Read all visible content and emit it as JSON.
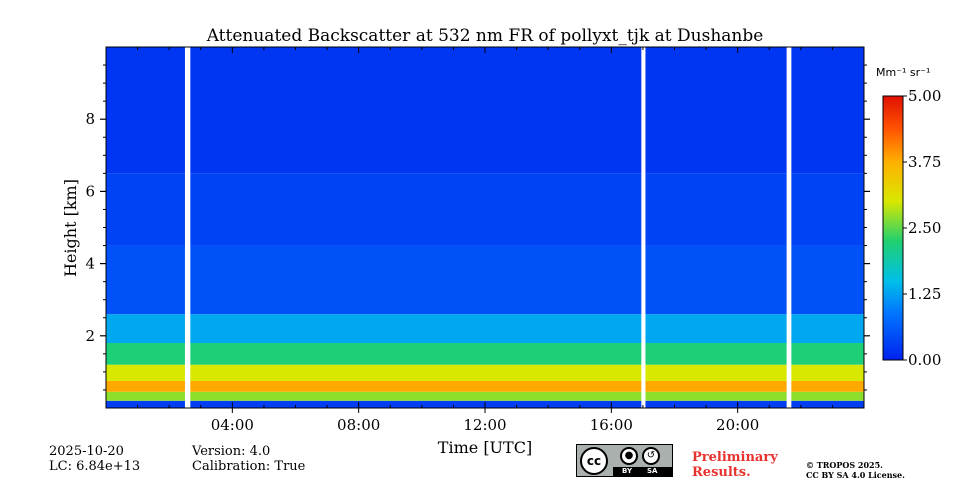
{
  "chart_data": {
    "type": "heatmap",
    "title": "Attenuated Backscatter at 532 nm FR of pollyxt_tjk at Dushanbe",
    "xlabel": "Time [UTC]",
    "ylabel": "Height [km]",
    "x_range_hours": [
      0,
      24
    ],
    "ylim": [
      0,
      10
    ],
    "x_ticks": [
      {
        "value": 4,
        "label": "04:00"
      },
      {
        "value": 8,
        "label": "08:00"
      },
      {
        "value": 12,
        "label": "12:00"
      },
      {
        "value": 16,
        "label": "16:00"
      },
      {
        "value": 20,
        "label": "20:00"
      }
    ],
    "y_ticks": [
      {
        "value": 2,
        "label": "2"
      },
      {
        "value": 4,
        "label": "4"
      },
      {
        "value": 6,
        "label": "6"
      },
      {
        "value": 8,
        "label": "8"
      }
    ],
    "colorbar": {
      "unit": "Mm⁻¹ sr⁻¹",
      "range": [
        0,
        5
      ],
      "ticks": [
        {
          "value": 0,
          "label": "0.00"
        },
        {
          "value": 1.25,
          "label": "1.25"
        },
        {
          "value": 2.5,
          "label": "2.50"
        },
        {
          "value": 3.75,
          "label": "3.75"
        },
        {
          "value": 5,
          "label": "5.00"
        }
      ],
      "colormap": "jet"
    },
    "data_gaps_hours": [
      [
        2.5,
        2.67
      ],
      [
        16.95,
        17.08
      ],
      [
        21.55,
        21.7
      ]
    ],
    "profile_layers": [
      {
        "height_km": [
          0.0,
          0.2
        ],
        "value": 0.3
      },
      {
        "height_km": [
          0.2,
          0.45
        ],
        "value": 2.7
      },
      {
        "height_km": [
          0.45,
          0.75
        ],
        "value": 3.8
      },
      {
        "height_km": [
          0.75,
          1.2
        ],
        "value": 3.0
      },
      {
        "height_km": [
          1.2,
          1.8
        ],
        "value": 2.2
      },
      {
        "height_km": [
          1.8,
          2.6
        ],
        "value": 1.3
      },
      {
        "height_km": [
          2.6,
          4.5
        ],
        "value": 0.5
      },
      {
        "height_km": [
          4.5,
          6.5
        ],
        "value": 0.35
      },
      {
        "height_km": [
          6.5,
          10.0
        ],
        "value": 0.2
      }
    ]
  },
  "footer": {
    "date": "2025-10-20",
    "lc": "LC: 6.84e+13",
    "version": "Version: 4.0",
    "calibration": "Calibration: True",
    "license_badge": {
      "cc": "cc",
      "by": "BY",
      "sa": "SA"
    },
    "preliminary_line1": "Preliminary",
    "preliminary_line2": "Results.",
    "copyright_line1": "© TROPOS 2025.",
    "copyright_line2": "CC BY SA 4.0 License."
  }
}
